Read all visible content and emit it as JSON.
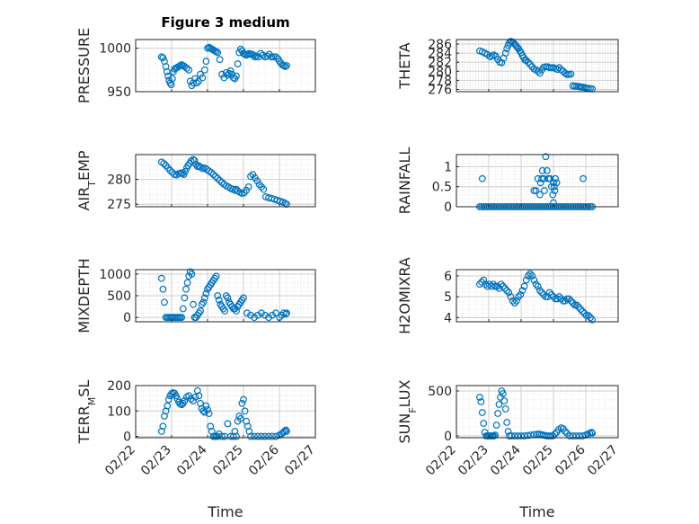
{
  "figure": {
    "title": "Figure 3 medium"
  },
  "style": {
    "marker_color": "#0072BD",
    "axes_color": "#262626",
    "grid_color": "#dcdcdc"
  },
  "chart_data": [
    {
      "id": "pressure",
      "type": "scatter",
      "title": "Figure 3 medium",
      "ylabel": "PRESSURE",
      "xlabel": "",
      "xlim": [
        0,
        5
      ],
      "ylim": [
        950,
        1010
      ],
      "yticks": [
        950,
        1000
      ],
      "x": [
        0.72,
        0.76,
        0.8,
        0.84,
        0.87,
        0.9,
        0.93,
        0.96,
        0.99,
        1.02,
        1.05,
        1.08,
        1.12,
        1.16,
        1.2,
        1.24,
        1.28,
        1.32,
        1.36,
        1.42,
        1.48,
        1.52,
        1.56,
        1.6,
        1.65,
        1.7,
        1.75,
        1.8,
        1.86,
        1.92,
        1.96,
        2.0,
        2.04,
        2.08,
        2.12,
        2.16,
        2.2,
        2.24,
        2.28,
        2.34,
        2.4,
        2.46,
        2.52,
        2.56,
        2.6,
        2.64,
        2.68,
        2.72,
        2.76,
        2.8,
        2.84,
        2.88,
        2.92,
        2.96,
        3.0,
        3.04,
        3.08,
        3.12,
        3.16,
        3.2,
        3.24,
        3.28,
        3.32,
        3.36,
        3.42,
        3.48,
        3.54,
        3.6,
        3.66,
        3.72,
        3.78,
        3.84,
        3.9,
        3.96,
        4.0,
        4.04,
        4.08,
        4.12,
        4.16,
        4.2
      ],
      "y": [
        990,
        989,
        985,
        979,
        973,
        968,
        963,
        960,
        958,
        965,
        973,
        976,
        977,
        978,
        979,
        980,
        981,
        980,
        979,
        977,
        975,
        962,
        957,
        960,
        965,
        960,
        962,
        970,
        966,
        975,
        985,
        1000,
        1001,
        1000,
        999,
        998,
        997,
        996,
        995,
        987,
        970,
        966,
        972,
        969,
        971,
        974,
        970,
        966,
        965,
        968,
        982,
        995,
        999,
        997,
        994,
        993,
        992,
        993,
        994,
        993,
        993,
        992,
        990,
        991,
        990,
        994,
        992,
        990,
        991,
        993,
        990,
        990,
        990,
        988,
        985,
        983,
        981,
        980,
        979,
        980
      ]
    },
    {
      "id": "theta",
      "type": "scatter",
      "ylabel": "THETA",
      "xlabel": "",
      "xlim": [
        0,
        5
      ],
      "ylim": [
        275.5,
        287
      ],
      "yticks": [
        276,
        278,
        280,
        282,
        284,
        286
      ],
      "x": [
        0.72,
        0.8,
        0.88,
        0.96,
        1.04,
        1.1,
        1.16,
        1.22,
        1.28,
        1.34,
        1.4,
        1.46,
        1.52,
        1.56,
        1.6,
        1.64,
        1.68,
        1.72,
        1.76,
        1.8,
        1.84,
        1.88,
        1.92,
        1.96,
        2.0,
        2.04,
        2.08,
        2.12,
        2.16,
        2.22,
        2.28,
        2.34,
        2.4,
        2.46,
        2.52,
        2.58,
        2.64,
        2.7,
        2.76,
        2.82,
        2.88,
        2.94,
        3.0,
        3.06,
        3.12,
        3.18,
        3.24,
        3.3,
        3.36,
        3.42,
        3.48,
        3.54,
        3.6,
        3.66,
        3.72,
        3.78,
        3.82,
        3.86,
        3.9,
        3.96,
        4.02,
        4.08,
        4.14,
        4.2
      ],
      "y": [
        284.5,
        284.3,
        284.0,
        283.7,
        283.2,
        283.4,
        283.6,
        283.3,
        282.6,
        282.0,
        281.9,
        282.9,
        284.0,
        285.0,
        285.7,
        286.3,
        286.6,
        286.5,
        286.3,
        286.0,
        285.7,
        285.3,
        285.0,
        284.5,
        284.1,
        283.5,
        283.0,
        282.5,
        282.4,
        282.0,
        281.5,
        281.0,
        280.5,
        280.3,
        280.0,
        279.6,
        280.3,
        280.9,
        281.0,
        281.0,
        280.8,
        280.8,
        280.8,
        280.6,
        280.4,
        280.8,
        280.3,
        280.0,
        279.6,
        279.3,
        279.3,
        279.4,
        276.8,
        276.7,
        276.7,
        276.6,
        276.6,
        276.5,
        276.5,
        276.4,
        276.3,
        276.2,
        276.2,
        276.1
      ]
    },
    {
      "id": "air_temp",
      "type": "scatter",
      "ylabel": "AIR_TEMP",
      "xlabel": "",
      "xlim": [
        0,
        5
      ],
      "ylim": [
        274.5,
        285
      ],
      "yticks": [
        275,
        280
      ],
      "x": [
        0.72,
        0.78,
        0.84,
        0.9,
        0.96,
        1.02,
        1.08,
        1.14,
        1.2,
        1.26,
        1.3,
        1.34,
        1.38,
        1.42,
        1.46,
        1.5,
        1.54,
        1.6,
        1.64,
        1.68,
        1.72,
        1.76,
        1.8,
        1.86,
        1.92,
        1.98,
        2.04,
        2.1,
        2.16,
        2.22,
        2.28,
        2.34,
        2.4,
        2.46,
        2.52,
        2.58,
        2.64,
        2.7,
        2.76,
        2.8,
        2.84,
        2.9,
        2.96,
        3.02,
        3.08,
        3.14,
        3.2,
        3.26,
        3.32,
        3.38,
        3.44,
        3.5,
        3.56,
        3.62,
        3.7,
        3.78,
        3.86,
        3.94,
        4.02,
        4.1,
        4.16,
        4.2
      ],
      "y": [
        283.5,
        283.2,
        282.8,
        282.3,
        281.8,
        281.4,
        281.0,
        280.9,
        281.2,
        281.3,
        281.2,
        281.0,
        281.6,
        282.3,
        282.8,
        283.2,
        283.7,
        284.0,
        283.8,
        283.0,
        282.6,
        282.7,
        282.5,
        282.2,
        282.3,
        282.0,
        281.7,
        281.4,
        281.0,
        280.6,
        280.2,
        279.8,
        279.4,
        279.0,
        278.7,
        278.5,
        278.2,
        278.0,
        277.8,
        278.0,
        277.7,
        277.4,
        277.2,
        277.3,
        277.8,
        278.5,
        280.6,
        281.0,
        280.3,
        279.7,
        279.0,
        278.5,
        278.0,
        276.5,
        276.3,
        276.2,
        276.0,
        275.8,
        275.6,
        275.4,
        275.2,
        275.0
      ]
    },
    {
      "id": "rainfall",
      "type": "scatter",
      "ylabel": "RAINFALL",
      "xlabel": "",
      "xlim": [
        0,
        5
      ],
      "ylim": [
        0,
        1.3
      ],
      "yticks": [
        0,
        0.5,
        1
      ],
      "x": [
        0.72,
        0.78,
        0.84,
        0.9,
        0.96,
        1.02,
        1.08,
        1.14,
        1.2,
        1.26,
        1.32,
        1.38,
        1.44,
        1.5,
        1.56,
        1.62,
        1.68,
        1.74,
        1.8,
        1.86,
        1.92,
        1.98,
        2.04,
        2.1,
        2.16,
        2.22,
        2.28,
        2.34,
        2.4,
        2.46,
        2.52,
        2.58,
        2.64,
        2.7,
        2.76,
        2.82,
        2.88,
        2.94,
        3.0,
        3.06,
        3.12,
        3.18,
        3.24,
        3.3,
        3.36,
        3.42,
        3.48,
        3.54,
        3.6,
        3.66,
        3.72,
        3.78,
        3.84,
        3.9,
        3.96,
        4.02,
        4.08,
        4.14,
        4.2,
        0.8,
        2.4,
        2.46,
        2.52,
        2.58,
        2.6,
        2.64,
        2.66,
        2.7,
        2.72,
        2.76,
        2.8,
        2.84,
        2.86,
        2.9,
        2.94,
        3.0,
        3.04,
        2.98,
        3.02,
        3.06,
        3.1,
        3.0,
        3.92
      ],
      "y": [
        0,
        0,
        0,
        0,
        0,
        0,
        0,
        0,
        0,
        0,
        0,
        0,
        0,
        0,
        0,
        0,
        0,
        0,
        0,
        0,
        0,
        0,
        0,
        0,
        0,
        0,
        0,
        0,
        0,
        0,
        0,
        0,
        0,
        0,
        0,
        0,
        0,
        0,
        0,
        0,
        0,
        0,
        0,
        0,
        0,
        0,
        0,
        0,
        0,
        0,
        0,
        0,
        0,
        0,
        0,
        0,
        0,
        0,
        0,
        0.7,
        0.4,
        0.4,
        0.7,
        0.3,
        0.6,
        0.7,
        0.9,
        0.7,
        0.4,
        1.25,
        0.9,
        0.7,
        0.7,
        0.7,
        0.5,
        0.6,
        0.4,
        0.3,
        0.5,
        0.7,
        0.6,
        0.1,
        0.7
      ]
    },
    {
      "id": "mixdepth",
      "type": "scatter",
      "ylabel": "MIXDEPTH",
      "xlabel": "",
      "xlim": [
        0,
        5
      ],
      "ylim": [
        -100,
        1100
      ],
      "yticks": [
        0,
        500,
        1000
      ],
      "x": [
        0.72,
        0.76,
        0.8,
        0.84,
        0.88,
        0.92,
        0.96,
        1.0,
        1.04,
        1.08,
        1.12,
        1.16,
        1.2,
        1.24,
        1.28,
        1.32,
        1.36,
        1.4,
        1.44,
        1.48,
        1.52,
        1.56,
        1.6,
        1.64,
        1.68,
        1.72,
        1.76,
        1.8,
        1.84,
        1.88,
        1.92,
        1.96,
        2.0,
        2.04,
        2.08,
        2.12,
        2.16,
        2.2,
        2.24,
        2.28,
        2.32,
        2.36,
        2.4,
        2.44,
        2.48,
        2.52,
        2.56,
        2.6,
        2.64,
        2.68,
        2.72,
        2.76,
        2.8,
        2.84,
        2.88,
        2.92,
        2.96,
        3.0,
        3.1,
        3.2,
        3.3,
        3.4,
        3.5,
        3.6,
        3.7,
        3.8,
        3.9,
        4.0,
        4.06,
        4.12,
        4.18,
        4.2
      ],
      "y": [
        900,
        650,
        350,
        0,
        0,
        0,
        0,
        0,
        0,
        0,
        0,
        0,
        0,
        0,
        0,
        200,
        450,
        650,
        800,
        950,
        1050,
        1000,
        300,
        0,
        0,
        50,
        100,
        150,
        300,
        350,
        450,
        550,
        650,
        700,
        750,
        800,
        850,
        900,
        950,
        500,
        400,
        300,
        250,
        200,
        150,
        500,
        450,
        350,
        300,
        250,
        200,
        200,
        150,
        250,
        300,
        350,
        400,
        450,
        100,
        50,
        0,
        50,
        100,
        50,
        0,
        50,
        100,
        0,
        50,
        100,
        80,
        100
      ]
    },
    {
      "id": "h2omixra",
      "type": "scatter",
      "ylabel": "H2OMIXRA",
      "xlabel": "",
      "xlim": [
        0,
        5
      ],
      "ylim": [
        3.8,
        6.3
      ],
      "yticks": [
        4,
        5,
        6
      ],
      "x": [
        0.72,
        0.78,
        0.84,
        0.9,
        0.96,
        1.02,
        1.08,
        1.14,
        1.2,
        1.26,
        1.32,
        1.38,
        1.44,
        1.5,
        1.56,
        1.62,
        1.68,
        1.74,
        1.8,
        1.86,
        1.92,
        1.98,
        2.04,
        2.1,
        2.16,
        2.22,
        2.28,
        2.34,
        2.4,
        2.46,
        2.52,
        2.58,
        2.64,
        2.7,
        2.76,
        2.82,
        2.88,
        2.94,
        3.0,
        3.06,
        3.12,
        3.18,
        3.24,
        3.3,
        3.36,
        3.42,
        3.48,
        3.54,
        3.6,
        3.66,
        3.72,
        3.78,
        3.84,
        3.9,
        3.96,
        4.02,
        4.08,
        4.14,
        4.2
      ],
      "y": [
        5.6,
        5.7,
        5.8,
        5.6,
        5.5,
        5.6,
        5.5,
        5.6,
        5.5,
        5.5,
        5.4,
        5.6,
        5.5,
        5.4,
        5.3,
        5.2,
        5.0,
        4.8,
        4.7,
        4.8,
        5.0,
        5.1,
        5.3,
        5.5,
        5.8,
        6.0,
        6.1,
        6.0,
        5.8,
        5.6,
        5.5,
        5.3,
        5.2,
        5.1,
        5.0,
        5.0,
        5.2,
        5.1,
        5.0,
        4.9,
        4.9,
        5.0,
        4.9,
        4.8,
        4.8,
        4.9,
        4.9,
        4.8,
        4.7,
        4.6,
        4.6,
        4.5,
        4.4,
        4.3,
        4.2,
        4.1,
        4.1,
        4.0,
        3.9
      ]
    },
    {
      "id": "terr_msl",
      "type": "scatter",
      "ylabel": "TERR_MSL",
      "xlabel": "Time",
      "xlim": [
        0,
        5
      ],
      "ylim": [
        -5,
        200
      ],
      "yticks": [
        0,
        100,
        200
      ],
      "xticklabels": [
        "02/22",
        "02/23",
        "02/24",
        "02/25",
        "02/26",
        "02/27"
      ],
      "x": [
        0.72,
        0.76,
        0.8,
        0.84,
        0.88,
        0.92,
        0.96,
        1.0,
        1.04,
        1.08,
        1.12,
        1.16,
        1.2,
        1.24,
        1.28,
        1.32,
        1.36,
        1.42,
        1.48,
        1.54,
        1.6,
        1.66,
        1.72,
        1.76,
        1.8,
        1.84,
        1.88,
        1.92,
        1.96,
        2.0,
        2.04,
        2.08,
        2.12,
        2.16,
        2.2,
        2.24,
        2.28,
        2.32,
        2.4,
        2.48,
        2.56,
        2.64,
        2.72,
        2.76,
        2.8,
        2.84,
        2.88,
        2.92,
        2.96,
        3.0,
        3.04,
        3.08,
        3.12,
        3.16,
        3.2,
        3.3,
        3.4,
        3.5,
        3.6,
        3.7,
        3.8,
        3.9,
        4.0,
        4.06,
        4.1,
        4.14,
        4.18,
        4.2
      ],
      "y": [
        20,
        40,
        80,
        100,
        120,
        145,
        160,
        168,
        172,
        170,
        160,
        148,
        135,
        128,
        125,
        130,
        140,
        155,
        160,
        148,
        140,
        155,
        180,
        160,
        130,
        110,
        100,
        95,
        120,
        105,
        90,
        40,
        20,
        0,
        0,
        0,
        0,
        10,
        0,
        0,
        50,
        0,
        0,
        20,
        0,
        60,
        80,
        70,
        130,
        145,
        100,
        60,
        40,
        20,
        0,
        0,
        0,
        0,
        0,
        0,
        0,
        0,
        5,
        10,
        15,
        20,
        25,
        20
      ]
    },
    {
      "id": "sun_flux",
      "type": "scatter",
      "ylabel": "SUN_FLUX",
      "xlabel": "Time",
      "xlim": [
        0,
        5
      ],
      "ylim": [
        -20,
        560
      ],
      "yticks": [
        0,
        500
      ],
      "xticklabels": [
        "02/22",
        "02/23",
        "02/24",
        "02/25",
        "02/26",
        "02/27"
      ],
      "x": [
        0.72,
        0.76,
        0.8,
        0.84,
        0.88,
        0.92,
        0.96,
        1.0,
        1.04,
        1.08,
        1.12,
        1.16,
        1.2,
        1.24,
        1.28,
        1.32,
        1.36,
        1.4,
        1.44,
        1.48,
        1.52,
        1.56,
        1.6,
        1.64,
        1.7,
        1.8,
        1.9,
        2.0,
        2.1,
        2.2,
        2.3,
        2.4,
        2.5,
        2.56,
        2.62,
        2.68,
        2.74,
        2.8,
        2.86,
        2.92,
        2.98,
        3.04,
        3.1,
        3.16,
        3.24,
        3.3,
        3.36,
        3.42,
        3.5,
        3.6,
        3.7,
        3.8,
        3.9,
        4.0,
        4.06,
        4.12,
        4.18,
        4.2
      ],
      "y": [
        430,
        380,
        260,
        140,
        40,
        0,
        0,
        0,
        0,
        0,
        0,
        0,
        10,
        120,
        250,
        350,
        430,
        500,
        470,
        390,
        300,
        150,
        50,
        0,
        0,
        0,
        0,
        0,
        0,
        5,
        10,
        15,
        20,
        20,
        15,
        10,
        5,
        0,
        0,
        0,
        0,
        20,
        40,
        70,
        90,
        80,
        50,
        30,
        0,
        0,
        0,
        0,
        0,
        10,
        20,
        30,
        40,
        30
      ]
    }
  ]
}
